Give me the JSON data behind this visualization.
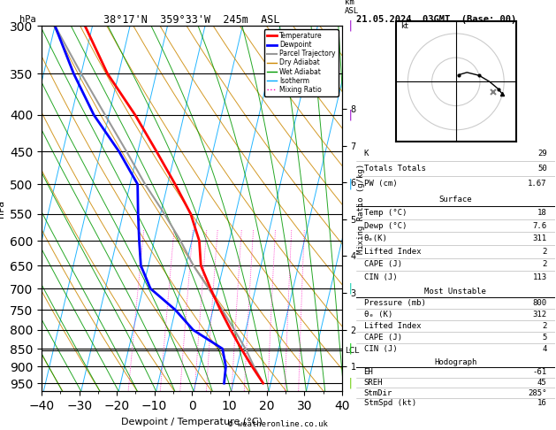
{
  "title_left": "38°17'N  359°33'W  245m  ASL",
  "title_right": "21.05.2024  03GMT  (Base: 00)",
  "xlabel": "Dewpoint / Temperature (°C)",
  "ylabel_left": "hPa",
  "mixing_ratio_ylabel": "Mixing Ratio (g/kg)",
  "xlim": [
    -40,
    40
  ],
  "temp_color": "#ff0000",
  "dewp_color": "#0000ff",
  "parcel_color": "#999999",
  "dry_adiabat_color": "#cc8800",
  "wet_adiabat_color": "#009900",
  "isotherm_color": "#00aaff",
  "mixing_color": "#ff00bb",
  "background_color": "#ffffff",
  "km_ticks": [
    1,
    2,
    3,
    4,
    5,
    6,
    7,
    8
  ],
  "lcl_pressure": 855,
  "pressure_levels": [
    300,
    350,
    400,
    450,
    500,
    550,
    600,
    650,
    700,
    750,
    800,
    850,
    900,
    950
  ],
  "mixing_ratio_lines": [
    1,
    2,
    3,
    4,
    5,
    8,
    10,
    15,
    20,
    25
  ],
  "temperature_profile": {
    "pressure": [
      950,
      900,
      850,
      800,
      750,
      700,
      650,
      600,
      550,
      500,
      450,
      400,
      350,
      300
    ],
    "temp": [
      18,
      14,
      10,
      6,
      2,
      -2,
      -6,
      -8,
      -12,
      -18,
      -25,
      -33,
      -43,
      -52
    ]
  },
  "dewpoint_profile": {
    "pressure": [
      950,
      900,
      850,
      800,
      750,
      700,
      650,
      600,
      550,
      500,
      450,
      400,
      350,
      300
    ],
    "temp": [
      7.6,
      7.0,
      5.0,
      -4,
      -10,
      -18,
      -22,
      -24,
      -26,
      -28,
      -35,
      -44,
      -52,
      -60
    ]
  },
  "parcel_profile": {
    "pressure": [
      950,
      900,
      855,
      800,
      750,
      700,
      650,
      600,
      550,
      500,
      450,
      400,
      350,
      300
    ],
    "temp": [
      18,
      14.5,
      11.5,
      7,
      2.5,
      -2.5,
      -8,
      -13,
      -19,
      -26,
      -33,
      -41,
      -50,
      -60
    ]
  },
  "copyright": "© weatheronline.co.uk",
  "wind_barb_pressures": [
    300,
    400,
    500,
    700,
    850,
    950
  ],
  "wind_barb_colors": [
    "#9900cc",
    "#9900cc",
    "#00aaff",
    "#00ccaa",
    "#00cc00",
    "#66cc00"
  ],
  "wind_barb_speeds": [
    25,
    20,
    15,
    10,
    5,
    5
  ],
  "wind_barb_dirs": [
    285,
    270,
    255,
    240,
    210,
    200
  ]
}
